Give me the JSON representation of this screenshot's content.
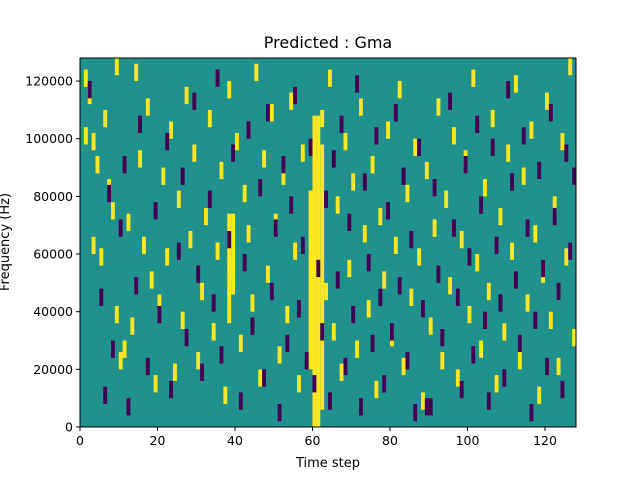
{
  "chart_data": {
    "type": "heatmap",
    "title": "Predicted : Gma",
    "xlabel": "Time step",
    "ylabel": "Frequency (Hz)",
    "xlim": [
      0,
      128
    ],
    "ylim": [
      0,
      128000
    ],
    "x_ticks": [
      0,
      20,
      40,
      60,
      80,
      100,
      120
    ],
    "y_ticks": [
      0,
      20000,
      40000,
      60000,
      80000,
      100000,
      120000
    ],
    "x_tick_labels": [
      "0",
      "20",
      "40",
      "60",
      "80",
      "100",
      "120"
    ],
    "y_tick_labels": [
      "0",
      "20000",
      "40000",
      "60000",
      "80000",
      "100000",
      "120000"
    ],
    "grid": false,
    "colormap": "viridis",
    "background_value": 0,
    "colors": {
      "background": "#21918c",
      "high": "#fde725",
      "low": "#440154"
    },
    "value_legend": {
      "-1": "#440154",
      "0": "#21918c",
      "1": "#fde725"
    },
    "cell_size": {
      "time": 1,
      "frequency": 2000
    },
    "cells": [
      [
        1,
        118000,
        1
      ],
      [
        1,
        98000,
        1
      ],
      [
        2,
        112000,
        1
      ],
      [
        3,
        96000,
        1
      ],
      [
        4,
        88000,
        1
      ],
      [
        3,
        60000,
        1
      ],
      [
        5,
        56000,
        1
      ],
      [
        6,
        104000,
        1
      ],
      [
        7,
        80000,
        1
      ],
      [
        8,
        72000,
        1
      ],
      [
        9,
        122000,
        1
      ],
      [
        9,
        36000,
        1
      ],
      [
        10,
        20000,
        1
      ],
      [
        11,
        24000,
        1
      ],
      [
        12,
        68000,
        1
      ],
      [
        13,
        32000,
        1
      ],
      [
        14,
        120000,
        1
      ],
      [
        15,
        90000,
        1
      ],
      [
        16,
        60000,
        1
      ],
      [
        17,
        108000,
        1
      ],
      [
        18,
        48000,
        1
      ],
      [
        19,
        12000,
        1
      ],
      [
        20,
        40000,
        1
      ],
      [
        21,
        84000,
        1
      ],
      [
        22,
        56000,
        1
      ],
      [
        23,
        100000,
        1
      ],
      [
        24,
        16000,
        1
      ],
      [
        25,
        76000,
        1
      ],
      [
        26,
        34000,
        1
      ],
      [
        27,
        112000,
        1
      ],
      [
        28,
        62000,
        1
      ],
      [
        29,
        92000,
        1
      ],
      [
        30,
        20000,
        1
      ],
      [
        31,
        44000,
        1
      ],
      [
        32,
        70000,
        1
      ],
      [
        33,
        104000,
        1
      ],
      [
        34,
        30000,
        1
      ],
      [
        35,
        58000,
        1
      ],
      [
        36,
        86000,
        1
      ],
      [
        37,
        8000,
        1
      ],
      [
        38,
        114000,
        1
      ],
      [
        39,
        52000,
        1
      ],
      [
        40,
        96000,
        1
      ],
      [
        41,
        26000,
        1
      ],
      [
        42,
        78000,
        1
      ],
      [
        43,
        64000,
        1
      ],
      [
        44,
        40000,
        1
      ],
      [
        45,
        120000,
        1
      ],
      [
        46,
        14000,
        1
      ],
      [
        47,
        90000,
        1
      ],
      [
        48,
        50000,
        1
      ],
      [
        49,
        106000,
        1
      ],
      [
        50,
        68000,
        1
      ],
      [
        51,
        22000,
        1
      ],
      [
        52,
        84000,
        1
      ],
      [
        53,
        36000,
        1
      ],
      [
        54,
        110000,
        1
      ],
      [
        55,
        58000,
        1
      ],
      [
        56,
        12000,
        1
      ],
      [
        57,
        92000,
        1
      ],
      [
        62,
        104000,
        1
      ],
      [
        63,
        44000,
        1
      ],
      [
        64,
        118000,
        1
      ],
      [
        65,
        30000,
        1
      ],
      [
        66,
        74000,
        1
      ],
      [
        67,
        16000,
        1
      ],
      [
        68,
        96000,
        1
      ],
      [
        69,
        52000,
        1
      ],
      [
        70,
        82000,
        1
      ],
      [
        71,
        24000,
        1
      ],
      [
        72,
        108000,
        1
      ],
      [
        73,
        64000,
        1
      ],
      [
        74,
        38000,
        1
      ],
      [
        75,
        88000,
        1
      ],
      [
        76,
        10000,
        1
      ],
      [
        77,
        70000,
        1
      ],
      [
        78,
        48000,
        1
      ],
      [
        79,
        100000,
        1
      ],
      [
        80,
        28000,
        1
      ],
      [
        81,
        60000,
        1
      ],
      [
        82,
        114000,
        1
      ],
      [
        83,
        18000,
        1
      ],
      [
        84,
        78000,
        1
      ],
      [
        85,
        42000,
        1
      ],
      [
        86,
        94000,
        1
      ],
      [
        87,
        56000,
        1
      ],
      [
        88,
        6000,
        1
      ],
      [
        89,
        86000,
        1
      ],
      [
        90,
        32000,
        1
      ],
      [
        91,
        66000,
        1
      ],
      [
        92,
        108000,
        1
      ],
      [
        93,
        20000,
        1
      ],
      [
        94,
        76000,
        1
      ],
      [
        95,
        46000,
        1
      ],
      [
        96,
        98000,
        1
      ],
      [
        97,
        14000,
        1
      ],
      [
        98,
        62000,
        1
      ],
      [
        99,
        90000,
        1
      ],
      [
        100,
        36000,
        1
      ],
      [
        101,
        118000,
        1
      ],
      [
        102,
        54000,
        1
      ],
      [
        103,
        24000,
        1
      ],
      [
        104,
        80000,
        1
      ],
      [
        105,
        44000,
        1
      ],
      [
        106,
        104000,
        1
      ],
      [
        107,
        12000,
        1
      ],
      [
        108,
        70000,
        1
      ],
      [
        109,
        30000,
        1
      ],
      [
        110,
        92000,
        1
      ],
      [
        111,
        58000,
        1
      ],
      [
        112,
        116000,
        1
      ],
      [
        113,
        20000,
        1
      ],
      [
        114,
        84000,
        1
      ],
      [
        115,
        40000,
        1
      ],
      [
        116,
        100000,
        1
      ],
      [
        117,
        64000,
        1
      ],
      [
        118,
        8000,
        1
      ],
      [
        119,
        50000,
        1
      ],
      [
        120,
        110000,
        1
      ],
      [
        121,
        34000,
        1
      ],
      [
        122,
        74000,
        1
      ],
      [
        123,
        18000,
        1
      ],
      [
        124,
        96000,
        1
      ],
      [
        125,
        56000,
        1
      ],
      [
        126,
        122000,
        1
      ],
      [
        127,
        28000,
        1
      ],
      [
        2,
        114000,
        -1
      ],
      [
        5,
        42000,
        -1
      ],
      [
        6,
        8000,
        -1
      ],
      [
        7,
        78000,
        -1
      ],
      [
        8,
        24000,
        -1
      ],
      [
        10,
        66000,
        -1
      ],
      [
        11,
        88000,
        -1
      ],
      [
        12,
        4000,
        -1
      ],
      [
        14,
        46000,
        -1
      ],
      [
        15,
        102000,
        -1
      ],
      [
        17,
        18000,
        -1
      ],
      [
        19,
        72000,
        -1
      ],
      [
        20,
        36000,
        -1
      ],
      [
        22,
        96000,
        -1
      ],
      [
        23,
        10000,
        -1
      ],
      [
        25,
        58000,
        -1
      ],
      [
        26,
        84000,
        -1
      ],
      [
        27,
        28000,
        -1
      ],
      [
        29,
        110000,
        -1
      ],
      [
        30,
        50000,
        -1
      ],
      [
        31,
        16000,
        -1
      ],
      [
        33,
        76000,
        -1
      ],
      [
        34,
        40000,
        -1
      ],
      [
        35,
        118000,
        -1
      ],
      [
        36,
        22000,
        -1
      ],
      [
        38,
        62000,
        -1
      ],
      [
        39,
        92000,
        -1
      ],
      [
        41,
        6000,
        -1
      ],
      [
        42,
        54000,
        -1
      ],
      [
        43,
        100000,
        -1
      ],
      [
        44,
        32000,
        -1
      ],
      [
        46,
        80000,
        -1
      ],
      [
        47,
        14000,
        -1
      ],
      [
        48,
        106000,
        -1
      ],
      [
        49,
        44000,
        -1
      ],
      [
        50,
        66000,
        -1
      ],
      [
        51,
        2000,
        -1
      ],
      [
        52,
        88000,
        -1
      ],
      [
        53,
        26000,
        -1
      ],
      [
        54,
        74000,
        -1
      ],
      [
        55,
        112000,
        -1
      ],
      [
        56,
        38000,
        -1
      ],
      [
        57,
        60000,
        -1
      ],
      [
        58,
        20000,
        -1
      ],
      [
        59,
        94000,
        -1
      ],
      [
        60,
        12000,
        -1
      ],
      [
        61,
        52000,
        -1
      ],
      [
        62,
        30000,
        -1
      ],
      [
        63,
        76000,
        -1
      ],
      [
        64,
        6000,
        -1
      ],
      [
        65,
        90000,
        -1
      ],
      [
        66,
        48000,
        -1
      ],
      [
        67,
        102000,
        -1
      ],
      [
        68,
        18000,
        -1
      ],
      [
        69,
        68000,
        -1
      ],
      [
        70,
        36000,
        -1
      ],
      [
        71,
        116000,
        -1
      ],
      [
        72,
        4000,
        -1
      ],
      [
        73,
        82000,
        -1
      ],
      [
        74,
        54000,
        -1
      ],
      [
        75,
        26000,
        -1
      ],
      [
        76,
        98000,
        -1
      ],
      [
        77,
        42000,
        -1
      ],
      [
        78,
        12000,
        -1
      ],
      [
        79,
        72000,
        -1
      ],
      [
        80,
        30000,
        -1
      ],
      [
        81,
        106000,
        -1
      ],
      [
        82,
        46000,
        -1
      ],
      [
        83,
        84000,
        -1
      ],
      [
        84,
        20000,
        -1
      ],
      [
        85,
        62000,
        -1
      ],
      [
        86,
        2000,
        -1
      ],
      [
        87,
        94000,
        -1
      ],
      [
        88,
        38000,
        -1
      ],
      [
        89,
        4000,
        -1
      ],
      [
        90,
        4000,
        -1
      ],
      [
        91,
        80000,
        -1
      ],
      [
        92,
        50000,
        -1
      ],
      [
        93,
        28000,
        -1
      ],
      [
        95,
        110000,
        -1
      ],
      [
        96,
        66000,
        -1
      ],
      [
        97,
        42000,
        -1
      ],
      [
        98,
        10000,
        -1
      ],
      [
        99,
        88000,
        -1
      ],
      [
        100,
        56000,
        -1
      ],
      [
        101,
        22000,
        -1
      ],
      [
        102,
        102000,
        -1
      ],
      [
        103,
        74000,
        -1
      ],
      [
        104,
        34000,
        -1
      ],
      [
        105,
        6000,
        -1
      ],
      [
        106,
        94000,
        -1
      ],
      [
        107,
        60000,
        -1
      ],
      [
        108,
        40000,
        -1
      ],
      [
        109,
        14000,
        -1
      ],
      [
        110,
        114000,
        -1
      ],
      [
        111,
        82000,
        -1
      ],
      [
        112,
        48000,
        -1
      ],
      [
        113,
        26000,
        -1
      ],
      [
        114,
        98000,
        -1
      ],
      [
        115,
        66000,
        -1
      ],
      [
        116,
        2000,
        -1
      ],
      [
        117,
        34000,
        -1
      ],
      [
        118,
        86000,
        -1
      ],
      [
        119,
        52000,
        -1
      ],
      [
        120,
        18000,
        -1
      ],
      [
        121,
        106000,
        -1
      ],
      [
        122,
        70000,
        -1
      ],
      [
        123,
        44000,
        -1
      ],
      [
        124,
        10000,
        -1
      ],
      [
        125,
        92000,
        -1
      ],
      [
        126,
        58000,
        -1
      ],
      [
        127,
        84000,
        -1
      ]
    ],
    "column_bands": [
      {
        "time": 60,
        "value": 1,
        "frequency_range": [
          0,
          108000
        ]
      },
      {
        "time": 61,
        "value": 1,
        "frequency_range": [
          0,
          108000
        ]
      },
      {
        "time": 62,
        "value": 1,
        "frequency_range": [
          6000,
          98000
        ]
      },
      {
        "time": 38,
        "value": 1,
        "frequency_range": [
          36000,
          74000
        ]
      },
      {
        "time": 39,
        "value": 1,
        "frequency_range": [
          46000,
          74000
        ]
      },
      {
        "time": 59,
        "value": 1,
        "frequency_range": [
          20000,
          82000
        ]
      }
    ]
  }
}
